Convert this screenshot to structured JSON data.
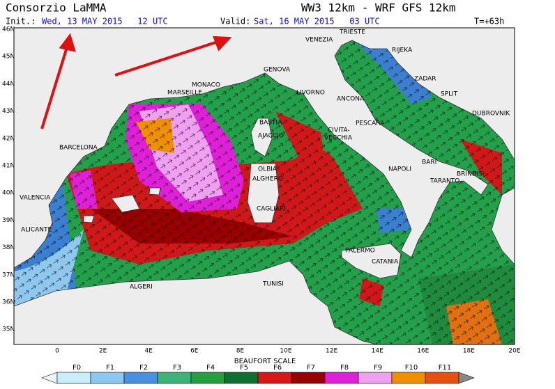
{
  "header": {
    "title": "Consorzio LaMMA",
    "model": "WW3 12km - WRF GFS 12km",
    "init_label": "Init.:",
    "init": "Wed, 13 MAY 2015   12 UTC",
    "valid_label": "Valid:",
    "valid": "Sat, 16 MAY 2015   03 UTC",
    "lead": "T=+63h"
  },
  "map": {
    "lat_labels": [
      "46N",
      "45N",
      "44N",
      "43N",
      "42N",
      "41N",
      "40N",
      "39N",
      "38N",
      "37N",
      "36N",
      "35N"
    ],
    "lon_labels": [
      "0",
      "2E",
      "4E",
      "6E",
      "8E",
      "10E",
      "12E",
      "14E",
      "16E",
      "18E",
      "20E"
    ],
    "cities": [
      "MARSEILLE",
      "MONACO",
      "GENOVA",
      "LIVORNO",
      "BASTIA",
      "AJACCIO",
      "OLBIA",
      "ALGHERO",
      "CAGLIARI",
      "CIVITA-",
      "VECCHIA",
      "PESCARA",
      "ANCONA",
      "VENEZIA",
      "TRIESTE",
      "RIJEKA",
      "ZADAR",
      "SPLIT",
      "DUBROVNIK",
      "BARI",
      "BRINDISI",
      "NAPOLI",
      "TARANTO",
      "PALERMO",
      "CATANIA",
      "TUNISI",
      "ALGERI",
      "BARCELONA",
      "VALENCIA",
      "ALICANTE"
    ]
  },
  "legend": {
    "title": "BEAUFORT SCALE",
    "classes": [
      "F0",
      "F1",
      "F2",
      "F3",
      "F4",
      "F5",
      "F6",
      "F7",
      "F8",
      "F9",
      "F10",
      "F11"
    ]
  }
}
